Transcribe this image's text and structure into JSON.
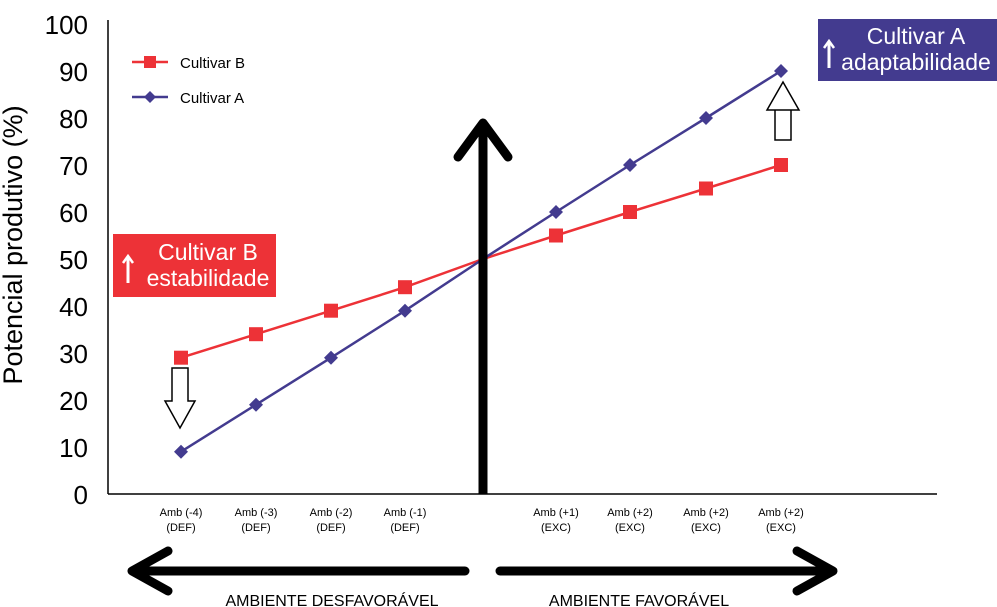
{
  "chart_data": {
    "type": "line",
    "ylabel": "Potencial produtivo (%)",
    "yticks": [
      "0",
      "10",
      "20",
      "30",
      "40",
      "50",
      "60",
      "70",
      "80",
      "90",
      "100"
    ],
    "ylim": [
      0,
      100
    ],
    "x_labels": [
      {
        "top": "Amb (-4)",
        "bottom": "(DEF)"
      },
      {
        "top": "Amb (-3)",
        "bottom": "(DEF)"
      },
      {
        "top": "Amb (-2)",
        "bottom": "(DEF)"
      },
      {
        "top": "Amb (-1)",
        "bottom": "(DEF)"
      },
      {
        "top": "Amb (+1)",
        "bottom": "(EXC)"
      },
      {
        "top": "Amb (+2)",
        "bottom": "(EXC)"
      },
      {
        "top": "Amb (+2)",
        "bottom": "(EXC)"
      },
      {
        "top": "Amb (+2)",
        "bottom": "(EXC)"
      }
    ],
    "x": [
      -4,
      -3,
      -2,
      -1,
      0,
      1,
      2,
      3,
      4
    ],
    "series": [
      {
        "name": "Cultivar B",
        "color": "#ed3237",
        "marker": "square",
        "values": [
          29,
          34,
          39,
          44,
          50,
          55,
          60,
          65,
          70
        ]
      },
      {
        "name": "Cultivar A",
        "color": "#433b8f",
        "marker": "diamond",
        "values": [
          9,
          19,
          29,
          39,
          50,
          60,
          70,
          80,
          90
        ]
      }
    ],
    "legend_position": "top-left",
    "grid": false,
    "bottom_labels": {
      "left": "AMBIENTE DESFAVORÁVEL",
      "right": "AMBIENTE FAVORÁVEL"
    },
    "annotations": {
      "cultivar_b": {
        "title": "Cultivar B",
        "subtitle": "estabilidade",
        "color": "#ed3237"
      },
      "cultivar_a": {
        "title": "Cultivar A",
        "subtitle": "adaptabilidade",
        "color": "#433b8f"
      }
    }
  }
}
